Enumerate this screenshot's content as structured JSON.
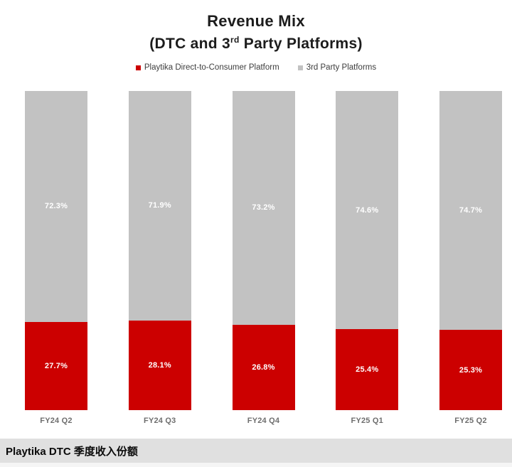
{
  "chart": {
    "title_line1": "Revenue Mix",
    "subtitle_prefix": "(DTC and 3",
    "subtitle_sup": "rd",
    "subtitle_suffix": " Party Platforms)"
  },
  "legend": [
    {
      "label": "Playtika Direct-to-Consumer Platform",
      "color": "#cc0000"
    },
    {
      "label": "3rd Party Platforms",
      "color": "#c2c2c2"
    }
  ],
  "caption": "Playtika DTC 季度收入份额",
  "chart_data": {
    "type": "bar",
    "stacked": true,
    "orientation": "vertical",
    "categories": [
      "FY24 Q2",
      "FY24 Q3",
      "FY24 Q4",
      "FY25 Q1",
      "FY25 Q2"
    ],
    "series": [
      {
        "name": "Playtika Direct-to-Consumer Platform",
        "color": "#cc0000",
        "values": [
          27.7,
          28.1,
          26.8,
          25.4,
          25.3
        ]
      },
      {
        "name": "3rd Party Platforms",
        "color": "#c2c2c2",
        "values": [
          72.3,
          71.9,
          73.2,
          74.6,
          74.7
        ]
      }
    ],
    "value_suffix": "%",
    "ylim": [
      0,
      100
    ],
    "grid": false,
    "legend_position": "top",
    "title": "Revenue Mix (DTC and 3rd Party Platforms)"
  }
}
